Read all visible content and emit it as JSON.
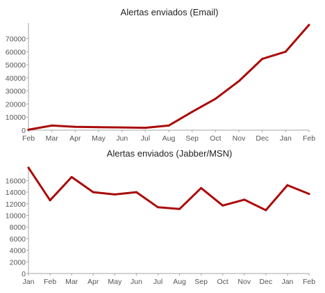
{
  "chart_data": [
    {
      "type": "line",
      "title": "Alertas enviados (Email)",
      "categories": [
        "Feb",
        "Mar",
        "Apr",
        "May",
        "Jun",
        "Jul",
        "Aug",
        "Sep",
        "Oct",
        "Nov",
        "Dec",
        "Jan",
        "Feb"
      ],
      "series": [
        {
          "values": [
            300,
            3500,
            2500,
            2300,
            2100,
            1800,
            3500,
            14000,
            24000,
            37500,
            54500,
            60000,
            80500
          ]
        }
      ],
      "yticks": [
        0,
        10000,
        20000,
        30000,
        40000,
        50000,
        60000,
        70000
      ],
      "ylim": [
        0,
        82000
      ],
      "xlabel": "",
      "ylabel": "",
      "grid": false,
      "color": "#aa0a0a"
    },
    {
      "type": "line",
      "title": "Alertas enviados (Jabber/MSN)",
      "categories": [
        "Jan",
        "Feb",
        "Mar",
        "Apr",
        "May",
        "Jun",
        "Jul",
        "Aug",
        "Sep",
        "Oct",
        "Nov",
        "Dec",
        "Jan",
        "Feb"
      ],
      "series": [
        {
          "values": [
            18200,
            12600,
            16600,
            14000,
            13600,
            14000,
            11400,
            11100,
            14700,
            11700,
            12700,
            10900,
            15200,
            13700
          ]
        }
      ],
      "yticks": [
        0,
        2000,
        4000,
        6000,
        8000,
        10000,
        12000,
        14000,
        16000
      ],
      "ylim": [
        0,
        18200
      ],
      "xlabel": "",
      "ylabel": "",
      "grid": false,
      "color": "#aa0a0a"
    }
  ]
}
